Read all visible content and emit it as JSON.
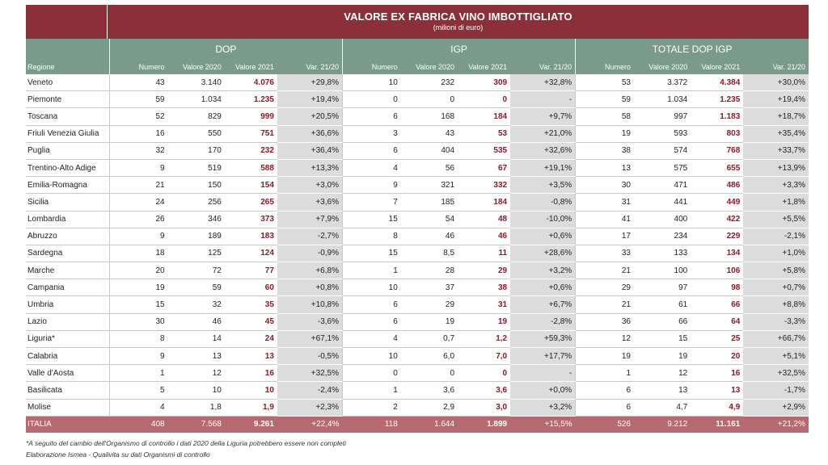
{
  "title": "VALORE EX FABRICA VINO IMBOTTIGLIATO",
  "subtitle": "(milioni di euro)",
  "groups": [
    "DOP",
    "IGP",
    "TOTALE DOP IGP"
  ],
  "headers": {
    "region": "Regione",
    "numero": "Numero",
    "v2020": "Valore 2020",
    "v2021": "Valore 2021",
    "var": "Var. 21/20"
  },
  "rows": [
    {
      "region": "Veneto",
      "dop": [
        "43",
        "3.140",
        "4.076",
        "+29,8%"
      ],
      "igp": [
        "10",
        "232",
        "309",
        "+32,8%"
      ],
      "tot": [
        "53",
        "3.372",
        "4.384",
        "+30,0%"
      ]
    },
    {
      "region": "Piemonte",
      "dop": [
        "59",
        "1.034",
        "1.235",
        "+19,4%"
      ],
      "igp": [
        "0",
        "0",
        "0",
        "-"
      ],
      "tot": [
        "59",
        "1.034",
        "1.235",
        "+19,4%"
      ]
    },
    {
      "region": "Toscana",
      "dop": [
        "52",
        "829",
        "999",
        "+20,5%"
      ],
      "igp": [
        "6",
        "168",
        "184",
        "+9,7%"
      ],
      "tot": [
        "58",
        "997",
        "1.183",
        "+18,7%"
      ]
    },
    {
      "region": "Friuli Venezia Giulia",
      "dop": [
        "16",
        "550",
        "751",
        "+36,6%"
      ],
      "igp": [
        "3",
        "43",
        "53",
        "+21,0%"
      ],
      "tot": [
        "19",
        "593",
        "803",
        "+35,4%"
      ]
    },
    {
      "region": "Puglia",
      "dop": [
        "32",
        "170",
        "232",
        "+36,4%"
      ],
      "igp": [
        "6",
        "404",
        "535",
        "+32,6%"
      ],
      "tot": [
        "38",
        "574",
        "768",
        "+33,7%"
      ]
    },
    {
      "region": "Trentino-Alto Adige",
      "dop": [
        "9",
        "519",
        "588",
        "+13,3%"
      ],
      "igp": [
        "4",
        "56",
        "67",
        "+19,1%"
      ],
      "tot": [
        "13",
        "575",
        "655",
        "+13,9%"
      ]
    },
    {
      "region": "Emilia-Romagna",
      "dop": [
        "21",
        "150",
        "154",
        "+3,0%"
      ],
      "igp": [
        "9",
        "321",
        "332",
        "+3,5%"
      ],
      "tot": [
        "30",
        "471",
        "486",
        "+3,3%"
      ]
    },
    {
      "region": "Sicilia",
      "dop": [
        "24",
        "256",
        "265",
        "+3,6%"
      ],
      "igp": [
        "7",
        "185",
        "184",
        "-0,8%"
      ],
      "tot": [
        "31",
        "441",
        "449",
        "+1,8%"
      ]
    },
    {
      "region": "Lombardia",
      "dop": [
        "26",
        "346",
        "373",
        "+7,9%"
      ],
      "igp": [
        "15",
        "54",
        "48",
        "-10,0%"
      ],
      "tot": [
        "41",
        "400",
        "422",
        "+5,5%"
      ]
    },
    {
      "region": "Abruzzo",
      "dop": [
        "9",
        "189",
        "183",
        "-2,7%"
      ],
      "igp": [
        "8",
        "46",
        "46",
        "+0,6%"
      ],
      "tot": [
        "17",
        "234",
        "229",
        "-2,1%"
      ]
    },
    {
      "region": "Sardegna",
      "dop": [
        "18",
        "125",
        "124",
        "-0,9%"
      ],
      "igp": [
        "15",
        "8,5",
        "11",
        "+28,6%"
      ],
      "tot": [
        "33",
        "133",
        "134",
        "+1,0%"
      ]
    },
    {
      "region": "Marche",
      "dop": [
        "20",
        "72",
        "77",
        "+6,8%"
      ],
      "igp": [
        "1",
        "28",
        "29",
        "+3,2%"
      ],
      "tot": [
        "21",
        "100",
        "106",
        "+5,8%"
      ]
    },
    {
      "region": "Campania",
      "dop": [
        "19",
        "59",
        "60",
        "+0,8%"
      ],
      "igp": [
        "10",
        "37",
        "38",
        "+0,6%"
      ],
      "tot": [
        "29",
        "97",
        "98",
        "+0,7%"
      ]
    },
    {
      "region": "Umbria",
      "dop": [
        "15",
        "32",
        "35",
        "+10,8%"
      ],
      "igp": [
        "6",
        "29",
        "31",
        "+6,7%"
      ],
      "tot": [
        "21",
        "61",
        "66",
        "+8,8%"
      ]
    },
    {
      "region": "Lazio",
      "dop": [
        "30",
        "46",
        "45",
        "-3,6%"
      ],
      "igp": [
        "6",
        "19",
        "19",
        "-2,8%"
      ],
      "tot": [
        "36",
        "66",
        "64",
        "-3,3%"
      ]
    },
    {
      "region": "Liguria*",
      "dop": [
        "8",
        "14",
        "24",
        "+67,1%"
      ],
      "igp": [
        "4",
        "0,7",
        "1,2",
        "+59,3%"
      ],
      "tot": [
        "12",
        "15",
        "25",
        "+66,7%"
      ]
    },
    {
      "region": "Calabria",
      "dop": [
        "9",
        "13",
        "13",
        "-0,5%"
      ],
      "igp": [
        "10",
        "6,0",
        "7,0",
        "+17,7%"
      ],
      "tot": [
        "19",
        "19",
        "20",
        "+5,1%"
      ]
    },
    {
      "region": "Valle d'Aosta",
      "dop": [
        "1",
        "12",
        "16",
        "+32,5%"
      ],
      "igp": [
        "0",
        "0",
        "0",
        "-"
      ],
      "tot": [
        "1",
        "12",
        "16",
        "+32,5%"
      ]
    },
    {
      "region": "Basilicata",
      "dop": [
        "5",
        "10",
        "10",
        "-2,4%"
      ],
      "igp": [
        "1",
        "3,6",
        "3,6",
        "+0,0%"
      ],
      "tot": [
        "6",
        "13",
        "13",
        "-1,7%"
      ]
    },
    {
      "region": "Molise",
      "dop": [
        "4",
        "1,8",
        "1,9",
        "+2,3%"
      ],
      "igp": [
        "2",
        "2,9",
        "3,0",
        "+3,2%"
      ],
      "tot": [
        "6",
        "4,7",
        "4,9",
        "+2,9%"
      ]
    }
  ],
  "total": {
    "region": "ITALIA",
    "dop": [
      "408",
      "7.568",
      "9.261",
      "+22,4%"
    ],
    "igp": [
      "118",
      "1.644",
      "1.899",
      "+15,5%"
    ],
    "tot": [
      "526",
      "9.212",
      "11.161",
      "+21,2%"
    ]
  },
  "notes": [
    "*A seguito del cambio dell'Organismo di controllo i dati 2020 della Liguria potrebbero essere non completi",
    "Elaborazione Ismea - Qualivita su dati Organismi di controllo"
  ],
  "colors": {
    "header_red": "#8b2f38",
    "header_green": "#7a9b8b",
    "total_row": "#b66a6f",
    "value_2021": "#8b1a2b",
    "var_shade": "#dcdcdc"
  }
}
